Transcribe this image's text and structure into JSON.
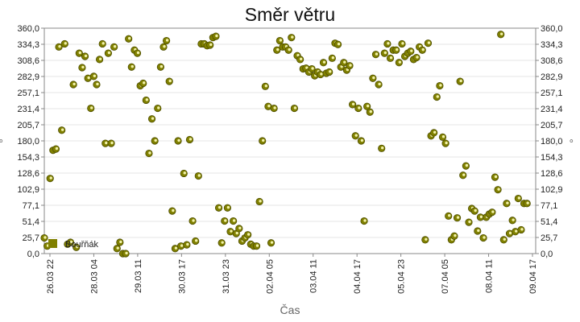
{
  "chart_data": {
    "type": "scatter",
    "title": "Směr větru",
    "xlabel": "Čas",
    "ylabel": "°",
    "ylim": [
      0,
      360
    ],
    "y_ticks": [
      "0,0",
      "25,7",
      "51,4",
      "77,1",
      "102,9",
      "128,6",
      "154,3",
      "180,0",
      "205,7",
      "231,4",
      "257,1",
      "282,9",
      "308,6",
      "334,3",
      "360,0"
    ],
    "x_ticks": [
      "26.03 22",
      "28.03 04",
      "29.03 11",
      "30.03 17",
      "31.03 23",
      "02.04 05",
      "03.04 11",
      "04.04 17",
      "05.04 23",
      "07.04 05",
      "08.04 11",
      "09.04 17"
    ],
    "x_start": "2024-03-26T22:00",
    "x_end": "2024-04-10T00:00",
    "grid": true,
    "legend_position": "bottom-left",
    "series": [
      {
        "name": "Bouřňák",
        "color": "#808000",
        "points": [
          [
            "2024-03-26T22:00",
            25
          ],
          [
            "2024-03-27T00:00",
            12
          ],
          [
            "2024-03-27T02:00",
            120
          ],
          [
            "2024-03-27T04:00",
            165
          ],
          [
            "2024-03-27T06:00",
            167
          ],
          [
            "2024-03-27T08:00",
            330
          ],
          [
            "2024-03-27T10:00",
            197
          ],
          [
            "2024-03-27T12:00",
            335
          ],
          [
            "2024-03-27T14:00",
            15
          ],
          [
            "2024-03-27T16:00",
            18
          ],
          [
            "2024-03-27T18:00",
            270
          ],
          [
            "2024-03-27T20:00",
            10
          ],
          [
            "2024-03-27T22:00",
            320
          ],
          [
            "2024-03-28T00:00",
            297
          ],
          [
            "2024-03-28T02:00",
            315
          ],
          [
            "2024-03-28T04:00",
            280
          ],
          [
            "2024-03-28T06:00",
            232
          ],
          [
            "2024-03-28T08:00",
            283
          ],
          [
            "2024-03-28T10:00",
            270
          ],
          [
            "2024-03-28T12:00",
            310
          ],
          [
            "2024-03-28T14:00",
            335
          ],
          [
            "2024-03-28T16:00",
            176
          ],
          [
            "2024-03-28T18:00",
            320
          ],
          [
            "2024-03-28T20:00",
            176
          ],
          [
            "2024-03-28T22:00",
            330
          ],
          [
            "2024-03-29T00:00",
            8
          ],
          [
            "2024-03-29T02:00",
            18
          ],
          [
            "2024-03-29T04:00",
            0
          ],
          [
            "2024-03-29T06:00",
            0
          ],
          [
            "2024-03-29T08:00",
            343
          ],
          [
            "2024-03-29T10:00",
            298
          ],
          [
            "2024-03-29T12:00",
            325
          ],
          [
            "2024-03-29T14:00",
            320
          ],
          [
            "2024-03-29T16:00",
            268
          ],
          [
            "2024-03-29T18:00",
            272
          ],
          [
            "2024-03-29T20:00",
            245
          ],
          [
            "2024-03-29T22:00",
            160
          ],
          [
            "2024-03-30T00:00",
            215
          ],
          [
            "2024-03-30T02:00",
            180
          ],
          [
            "2024-03-30T04:00",
            232
          ],
          [
            "2024-03-30T06:00",
            298
          ],
          [
            "2024-03-30T08:00",
            330
          ],
          [
            "2024-03-30T10:00",
            340
          ],
          [
            "2024-03-30T12:00",
            275
          ],
          [
            "2024-03-30T14:00",
            68
          ],
          [
            "2024-03-30T16:00",
            8
          ],
          [
            "2024-03-30T18:00",
            180
          ],
          [
            "2024-03-30T20:00",
            12
          ],
          [
            "2024-03-30T22:00",
            128
          ],
          [
            "2024-03-31T00:00",
            14
          ],
          [
            "2024-03-31T02:00",
            182
          ],
          [
            "2024-03-31T04:00",
            52
          ],
          [
            "2024-03-31T06:00",
            20
          ],
          [
            "2024-03-31T08:00",
            124
          ],
          [
            "2024-03-31T10:00",
            335
          ],
          [
            "2024-03-31T12:00",
            335
          ],
          [
            "2024-03-31T14:00",
            332
          ],
          [
            "2024-03-31T16:00",
            333
          ],
          [
            "2024-03-31T18:00",
            345
          ],
          [
            "2024-03-31T20:00",
            347
          ],
          [
            "2024-03-31T22:00",
            73
          ],
          [
            "2024-04-01T00:00",
            17
          ],
          [
            "2024-04-01T02:00",
            52
          ],
          [
            "2024-04-01T04:00",
            73
          ],
          [
            "2024-04-01T06:00",
            35
          ],
          [
            "2024-04-01T08:00",
            52
          ],
          [
            "2024-04-01T10:00",
            32
          ],
          [
            "2024-04-01T12:00",
            40
          ],
          [
            "2024-04-01T14:00",
            20
          ],
          [
            "2024-04-01T16:00",
            25
          ],
          [
            "2024-04-01T18:00",
            30
          ],
          [
            "2024-04-01T20:00",
            15
          ],
          [
            "2024-04-01T22:00",
            12
          ],
          [
            "2024-04-02T00:00",
            12
          ],
          [
            "2024-04-02T02:00",
            83
          ],
          [
            "2024-04-02T04:00",
            180
          ],
          [
            "2024-04-02T06:00",
            267
          ],
          [
            "2024-04-02T08:00",
            235
          ],
          [
            "2024-04-02T10:00",
            17
          ],
          [
            "2024-04-02T12:00",
            232
          ],
          [
            "2024-04-02T14:00",
            325
          ],
          [
            "2024-04-02T16:00",
            340
          ],
          [
            "2024-04-02T18:00",
            330
          ],
          [
            "2024-04-02T20:00",
            330
          ],
          [
            "2024-04-02T22:00",
            325
          ],
          [
            "2024-04-03T00:00",
            345
          ],
          [
            "2024-04-03T02:00",
            232
          ],
          [
            "2024-04-03T04:00",
            316
          ],
          [
            "2024-04-03T06:00",
            310
          ],
          [
            "2024-04-03T08:00",
            295
          ],
          [
            "2024-04-03T10:00",
            296
          ],
          [
            "2024-04-03T12:00",
            290
          ],
          [
            "2024-04-03T14:00",
            295
          ],
          [
            "2024-04-03T16:00",
            284
          ],
          [
            "2024-04-03T18:00",
            290
          ],
          [
            "2024-04-03T20:00",
            286
          ],
          [
            "2024-04-03T22:00",
            305
          ],
          [
            "2024-04-04T00:00",
            288
          ],
          [
            "2024-04-04T02:00",
            290
          ],
          [
            "2024-04-04T04:00",
            312
          ],
          [
            "2024-04-04T06:00",
            336
          ],
          [
            "2024-04-04T08:00",
            334
          ],
          [
            "2024-04-04T10:00",
            298
          ],
          [
            "2024-04-04T12:00",
            305
          ],
          [
            "2024-04-04T14:00",
            293
          ],
          [
            "2024-04-04T16:00",
            300
          ],
          [
            "2024-04-04T18:00",
            238
          ],
          [
            "2024-04-04T20:00",
            188
          ],
          [
            "2024-04-04T22:00",
            232
          ],
          [
            "2024-04-05T00:00",
            180
          ],
          [
            "2024-04-05T02:00",
            52
          ],
          [
            "2024-04-05T04:00",
            235
          ],
          [
            "2024-04-05T06:00",
            226
          ],
          [
            "2024-04-05T08:00",
            280
          ],
          [
            "2024-04-05T10:00",
            318
          ],
          [
            "2024-04-05T12:00",
            270
          ],
          [
            "2024-04-05T14:00",
            168
          ],
          [
            "2024-04-05T16:00",
            320
          ],
          [
            "2024-04-05T18:00",
            335
          ],
          [
            "2024-04-05T20:00",
            312
          ],
          [
            "2024-04-05T22:00",
            325
          ],
          [
            "2024-04-06T00:00",
            325
          ],
          [
            "2024-04-06T02:00",
            305
          ],
          [
            "2024-04-06T04:00",
            335
          ],
          [
            "2024-04-06T06:00",
            315
          ],
          [
            "2024-04-06T08:00",
            320
          ],
          [
            "2024-04-06T10:00",
            323
          ],
          [
            "2024-04-06T12:00",
            310
          ],
          [
            "2024-04-06T14:00",
            313
          ],
          [
            "2024-04-06T16:00",
            330
          ],
          [
            "2024-04-06T18:00",
            325
          ],
          [
            "2024-04-06T20:00",
            22
          ],
          [
            "2024-04-06T22:00",
            336
          ],
          [
            "2024-04-07T00:00",
            188
          ],
          [
            "2024-04-07T02:00",
            193
          ],
          [
            "2024-04-07T04:00",
            250
          ],
          [
            "2024-04-07T06:00",
            268
          ],
          [
            "2024-04-07T08:00",
            186
          ],
          [
            "2024-04-07T10:00",
            176
          ],
          [
            "2024-04-07T12:00",
            60
          ],
          [
            "2024-04-07T14:00",
            22
          ],
          [
            "2024-04-07T16:00",
            28
          ],
          [
            "2024-04-07T18:00",
            57
          ],
          [
            "2024-04-07T20:00",
            275
          ],
          [
            "2024-04-07T22:00",
            125
          ],
          [
            "2024-04-08T00:00",
            140
          ],
          [
            "2024-04-08T02:00",
            50
          ],
          [
            "2024-04-08T04:00",
            72
          ],
          [
            "2024-04-08T06:00",
            68
          ],
          [
            "2024-04-08T08:00",
            36
          ],
          [
            "2024-04-08T10:00",
            58
          ],
          [
            "2024-04-08T12:00",
            25
          ],
          [
            "2024-04-08T14:00",
            58
          ],
          [
            "2024-04-08T16:00",
            63
          ],
          [
            "2024-04-08T18:00",
            66
          ],
          [
            "2024-04-08T20:00",
            122
          ],
          [
            "2024-04-08T22:00",
            102
          ],
          [
            "2024-04-09T00:00",
            350
          ],
          [
            "2024-04-09T02:00",
            22
          ],
          [
            "2024-04-09T04:00",
            80
          ],
          [
            "2024-04-09T06:00",
            32
          ],
          [
            "2024-04-09T08:00",
            53
          ],
          [
            "2024-04-09T10:00",
            35
          ],
          [
            "2024-04-09T12:00",
            88
          ],
          [
            "2024-04-09T14:00",
            38
          ],
          [
            "2024-04-09T16:00",
            80
          ],
          [
            "2024-04-09T18:00",
            80
          ]
        ]
      }
    ]
  }
}
